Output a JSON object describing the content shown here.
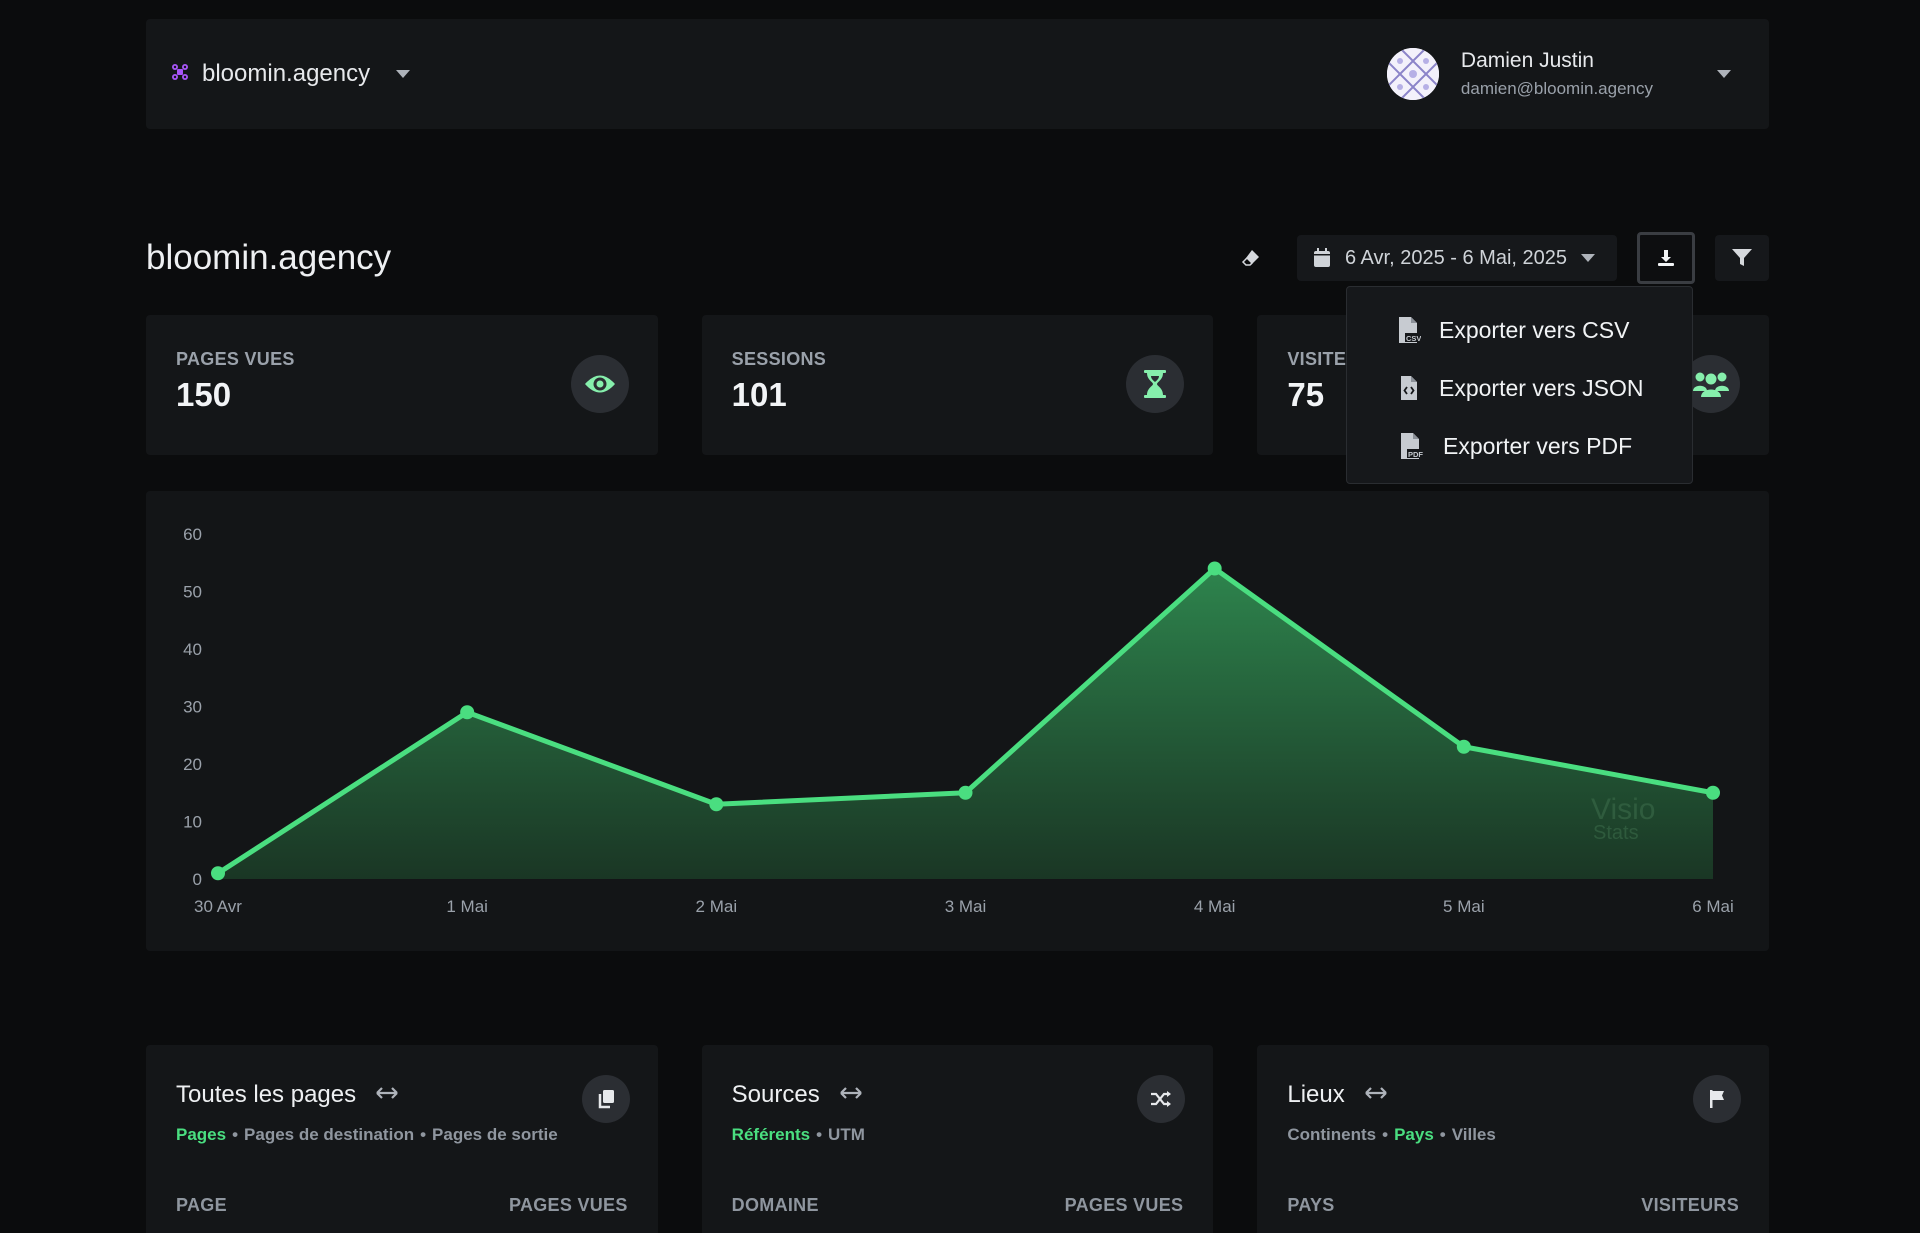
{
  "topbar": {
    "site_name": "bloomin.agency",
    "user_name": "Damien Justin",
    "user_email": "damien@bloomin.agency"
  },
  "header": {
    "title": "bloomin.agency",
    "date_range": "6 Avr, 2025 - 6 Mai, 2025"
  },
  "export_menu": {
    "items": [
      {
        "label": "Exporter vers CSV",
        "icon": "file-csv-icon"
      },
      {
        "label": "Exporter vers JSON",
        "icon": "file-code-icon"
      },
      {
        "label": "Exporter vers PDF",
        "icon": "file-pdf-icon"
      }
    ]
  },
  "stats": [
    {
      "label": "PAGES VUES",
      "value": "150",
      "icon": "eye-icon"
    },
    {
      "label": "SESSIONS",
      "value": "101",
      "icon": "hourglass-icon"
    },
    {
      "label": "VISITE",
      "value": "75",
      "icon": "users-icon"
    }
  ],
  "chart_data": {
    "type": "area",
    "categories": [
      "30 Avr",
      "1 Mai",
      "2 Mai",
      "3 Mai",
      "4 Mai",
      "5 Mai",
      "6 Mai"
    ],
    "values": [
      1,
      29,
      13,
      15,
      54,
      23,
      15
    ],
    "ylim": [
      0,
      60
    ],
    "yticks": [
      0,
      10,
      20,
      30,
      40,
      50,
      60
    ],
    "grid": false,
    "color": "#4ade80",
    "watermark": [
      "Visio",
      "Stats"
    ]
  },
  "panels": [
    {
      "title": "Toutes les pages",
      "icon": "copy-icon",
      "tabs": [
        {
          "label": "Pages",
          "active": true
        },
        {
          "label": "Pages de destination",
          "active": false
        },
        {
          "label": "Pages de sortie",
          "active": false
        }
      ],
      "col_left": "PAGE",
      "col_right": "PAGES VUES"
    },
    {
      "title": "Sources",
      "icon": "shuffle-icon",
      "tabs": [
        {
          "label": "Référents",
          "active": true
        },
        {
          "label": "UTM",
          "active": false
        }
      ],
      "col_left": "DOMAINE",
      "col_right": "PAGES VUES"
    },
    {
      "title": "Lieux",
      "icon": "flag-icon",
      "tabs": [
        {
          "label": "Continents",
          "active": false
        },
        {
          "label": "Pays",
          "active": true
        },
        {
          "label": "Villes",
          "active": false
        }
      ],
      "col_left": "PAYS",
      "col_right": "VISITEURS"
    }
  ],
  "colors": {
    "accent": "#4ade80",
    "brand": "#a855f7",
    "background": "#0b0c0d",
    "card": "#141618"
  }
}
